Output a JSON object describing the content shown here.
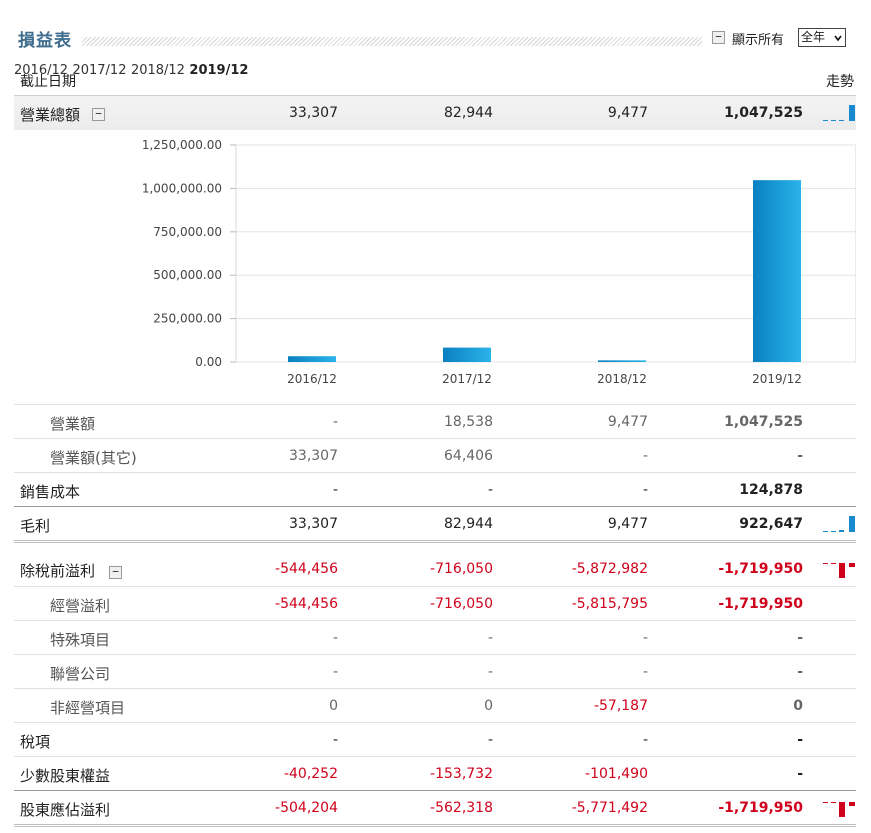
{
  "header": {
    "title": "損益表",
    "show_all_label": "顯示所有",
    "toggle_symbol": "−",
    "period": "全年"
  },
  "columns": {
    "label": "截止日期",
    "periods": [
      "2016/12",
      "2017/12",
      "2018/12",
      "2019/12"
    ],
    "trend": "走勢"
  },
  "rows": [
    {
      "id": "revenue_total",
      "label": "營業總額",
      "values": [
        "33,307",
        "82,944",
        "9,477",
        "1,047,525"
      ]
    },
    {
      "id": "revenue",
      "label": "營業額",
      "values": [
        "-",
        "18,538",
        "9,477",
        "1,047,525"
      ]
    },
    {
      "id": "revenue_other",
      "label": "營業額(其它)",
      "values": [
        "33,307",
        "64,406",
        "-",
        "-"
      ]
    },
    {
      "id": "cost_of_sales",
      "label": "銷售成本",
      "values": [
        "-",
        "-",
        "-",
        "124,878"
      ]
    },
    {
      "id": "gross_profit",
      "label": "毛利",
      "values": [
        "33,307",
        "82,944",
        "9,477",
        "922,647"
      ]
    },
    {
      "id": "pretax_profit",
      "label": "除稅前溢利",
      "values": [
        "-544,456",
        "-716,050",
        "-5,872,982",
        "-1,719,950"
      ]
    },
    {
      "id": "operating_profit",
      "label": "經營溢利",
      "values": [
        "-544,456",
        "-716,050",
        "-5,815,795",
        "-1,719,950"
      ]
    },
    {
      "id": "special_items",
      "label": "特殊項目",
      "values": [
        "-",
        "-",
        "-",
        "-"
      ]
    },
    {
      "id": "associates",
      "label": "聯營公司",
      "values": [
        "-",
        "-",
        "-",
        "-"
      ]
    },
    {
      "id": "non_operating",
      "label": "非經營項目",
      "values": [
        "0",
        "0",
        "-57,187",
        "0"
      ]
    },
    {
      "id": "tax",
      "label": "稅項",
      "values": [
        "-",
        "-",
        "-",
        "-"
      ]
    },
    {
      "id": "minority_interest",
      "label": "少數股東權益",
      "values": [
        "-40,252",
        "-153,732",
        "-101,490",
        "-"
      ]
    },
    {
      "id": "net_profit",
      "label": "股東應佔溢利",
      "values": [
        "-504,204",
        "-562,318",
        "-5,771,492",
        "-1,719,950"
      ]
    }
  ],
  "colors": {
    "title": "#3e6d8e",
    "negative": "#d0021b",
    "bar_dark": "#0a7fc1",
    "bar_light": "#2ab4ea"
  },
  "chart_data": {
    "type": "bar",
    "categories": [
      "2016/12",
      "2017/12",
      "2018/12",
      "2019/12"
    ],
    "values": [
      33307,
      82944,
      9477,
      1047525
    ],
    "yticks": [
      "0.00",
      "250,000.00",
      "500,000.00",
      "750,000.00",
      "1,000,000.00",
      "1,250,000.00"
    ],
    "ylim": [
      0,
      1250000
    ],
    "grid": true,
    "title": "",
    "xlabel": "",
    "ylabel": ""
  }
}
